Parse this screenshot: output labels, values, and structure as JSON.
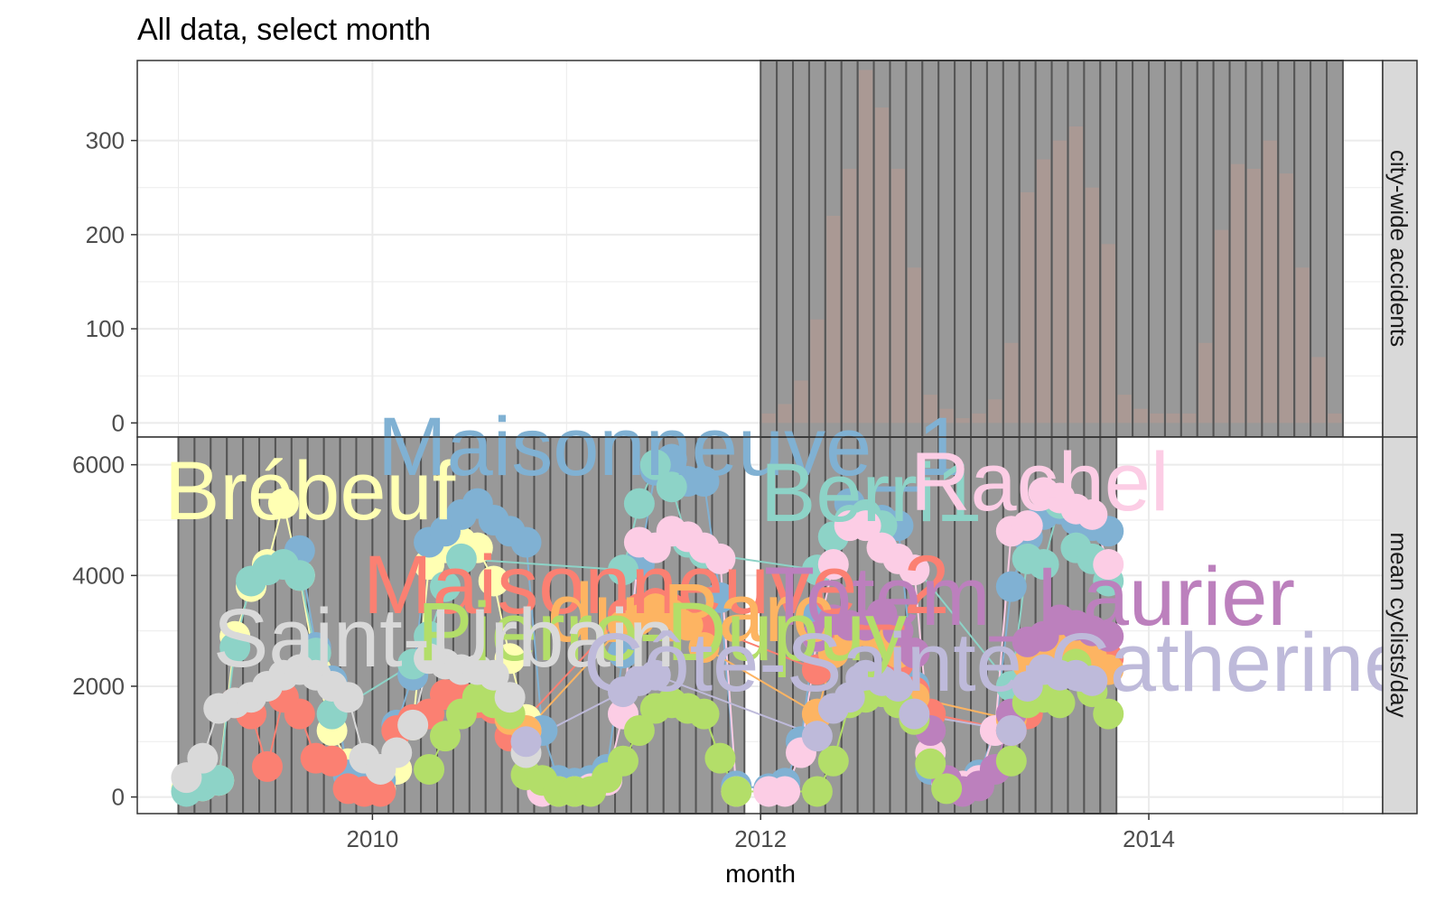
{
  "title": "All data, select month",
  "xlabel": "month",
  "colors": {
    "grid": "#ebebeb",
    "panel_border": "#333333",
    "strip_bg": "#d9d9d9",
    "select_rect": "#999999",
    "select_stroke": "#555555",
    "bar": "#b49a92"
  },
  "chart_data": [
    {
      "type": "bar",
      "panel": "city-wide accidents",
      "x_axis": {
        "type": "date",
        "range": [
          "2008-10-15",
          "2015-03-15"
        ],
        "ticks": [
          "2010",
          "2012",
          "2014"
        ]
      },
      "y_axis": {
        "range": [
          -15,
          385
        ],
        "ticks": [
          0,
          100,
          200,
          300
        ]
      },
      "grid": true,
      "months": [
        "2012-01",
        "2012-02",
        "2012-03",
        "2012-04",
        "2012-05",
        "2012-06",
        "2012-07",
        "2012-08",
        "2012-09",
        "2012-10",
        "2012-11",
        "2012-12",
        "2013-01",
        "2013-02",
        "2013-03",
        "2013-04",
        "2013-05",
        "2013-06",
        "2013-07",
        "2013-08",
        "2013-09",
        "2013-10",
        "2013-11",
        "2013-12",
        "2014-01",
        "2014-02",
        "2014-03",
        "2014-04",
        "2014-05",
        "2014-06",
        "2014-07",
        "2014-08",
        "2014-09",
        "2014-10",
        "2014-11",
        "2014-12"
      ],
      "values": [
        10,
        20,
        45,
        110,
        220,
        270,
        375,
        335,
        270,
        165,
        30,
        15,
        5,
        10,
        25,
        85,
        245,
        280,
        300,
        315,
        250,
        190,
        30,
        15,
        10,
        10,
        10,
        85,
        205,
        275,
        270,
        300,
        265,
        165,
        70,
        10
      ]
    },
    {
      "type": "line",
      "panel": "mean cyclists/day",
      "x_axis": {
        "type": "date",
        "range": [
          "2008-10-15",
          "2015-03-15"
        ],
        "ticks": [
          "2010",
          "2012",
          "2014"
        ]
      },
      "y_axis": {
        "range": [
          -300,
          6500
        ],
        "ticks": [
          0,
          2000,
          4000,
          6000
        ]
      },
      "grid": true,
      "labels": [
        {
          "text": "Brébeuf",
          "color": "#ffffb3"
        },
        {
          "text": "Maisonneuve_1",
          "color": "#80b1d3"
        },
        {
          "text": "Berri1",
          "color": "#8dd3c7"
        },
        {
          "text": "Rachel",
          "color": "#fccde5"
        },
        {
          "text": "Maisonneuve_2",
          "color": "#fb8072"
        },
        {
          "text": "du Parc",
          "color": "#fdb462"
        },
        {
          "text": "Totem_Laurier",
          "color": "#bc80bd"
        },
        {
          "text": "Pierre-Dupuy",
          "color": "#b3de69"
        },
        {
          "text": "Saint-Urbain",
          "color": "#d9d9d9"
        },
        {
          "text": "Côte-Sainte-Catherine",
          "color": "#bebada"
        }
      ],
      "series": [
        {
          "name": "Brébeuf",
          "color": "#ffffb3",
          "x": [
            "2009-01",
            "2009-02",
            "2009-03",
            "2009-04",
            "2009-05",
            "2009-06",
            "2009-07",
            "2009-08",
            "2009-09",
            "2009-10",
            "2009-11",
            "2009-12",
            "2010-01",
            "2010-02",
            "2010-03",
            "2010-04",
            "2010-05",
            "2010-06",
            "2010-07",
            "2010-08",
            "2010-09",
            "2010-10"
          ],
          "values": [
            150,
            200,
            300,
            2900,
            3800,
            4200,
            5300,
            4000,
            2300,
            1200,
            600,
            200,
            150,
            500,
            1300,
            4200,
            4500,
            4600,
            4500,
            3900,
            2500,
            1400
          ]
        },
        {
          "name": "Maisonneuve_1",
          "color": "#80b1d3",
          "x": [
            "2009-08",
            "2009-09",
            "2009-10",
            "2009-11",
            "2009-12",
            "2010-01",
            "2010-02",
            "2010-03",
            "2010-04",
            "2010-05",
            "2010-06",
            "2010-07",
            "2010-08",
            "2010-09",
            "2010-10",
            "2010-11",
            "2010-12",
            "2011-01",
            "2011-02",
            "2011-03",
            "2011-04",
            "2011-05",
            "2011-06",
            "2011-07",
            "2011-08",
            "2011-09",
            "2011-10",
            "2011-11",
            "2012-01",
            "2012-02",
            "2012-03",
            "2012-04",
            "2012-05",
            "2012-06",
            "2012-07",
            "2012-08",
            "2012-09",
            "2012-10",
            "2012-11",
            "2012-12",
            "2013-01",
            "2013-02",
            "2013-03",
            "2013-04",
            "2013-05",
            "2013-06",
            "2013-07",
            "2013-08",
            "2013-09",
            "2013-10"
          ],
          "values": [
            4450,
            2700,
            2100,
            400,
            200,
            300,
            1300,
            2200,
            4600,
            4800,
            5100,
            5300,
            5000,
            4800,
            4600,
            1200,
            300,
            250,
            300,
            500,
            2600,
            4200,
            5900,
            6100,
            5700,
            5700,
            3600,
            200,
            150,
            250,
            1000,
            3300,
            4700,
            5300,
            5100,
            5000,
            4900,
            2000,
            500,
            200,
            200,
            400,
            1200,
            3800,
            4700,
            5100,
            5200,
            5000,
            4900,
            4800
          ]
        },
        {
          "name": "Berri1",
          "color": "#8dd3c7",
          "x": [
            "2009-01",
            "2009-02",
            "2009-03",
            "2009-04",
            "2009-05",
            "2009-06",
            "2009-07",
            "2009-08",
            "2009-09",
            "2009-10",
            "2010-03",
            "2010-04",
            "2010-05",
            "2010-06",
            "2011-04",
            "2011-05",
            "2011-06",
            "2011-07",
            "2011-08",
            "2011-09",
            "2012-04",
            "2012-05",
            "2012-06",
            "2012-07",
            "2012-08",
            "2013-04",
            "2013-05",
            "2013-06",
            "2013-07",
            "2013-08",
            "2013-09",
            "2013-10"
          ],
          "values": [
            100,
            200,
            300,
            2700,
            3900,
            4100,
            4200,
            4000,
            2600,
            1500,
            2400,
            2900,
            3800,
            4300,
            4100,
            5300,
            6000,
            5600,
            4600,
            4400,
            4100,
            4700,
            5000,
            5100,
            4900,
            2000,
            4300,
            4200,
            5300,
            4500,
            4300,
            3900
          ]
        },
        {
          "name": "Rachel",
          "color": "#fccde5",
          "x": [
            "2010-09",
            "2010-10",
            "2010-11",
            "2010-12",
            "2011-01",
            "2011-02",
            "2011-03",
            "2011-04",
            "2011-05",
            "2011-06",
            "2011-07",
            "2011-08",
            "2011-09",
            "2011-10",
            "2011-11",
            "2012-01",
            "2012-02",
            "2012-03",
            "2012-04",
            "2012-05",
            "2012-06",
            "2012-07",
            "2012-08",
            "2012-09",
            "2012-10",
            "2012-11",
            "2012-12",
            "2013-01",
            "2013-02",
            "2013-03",
            "2013-04",
            "2013-05",
            "2013-06",
            "2013-07",
            "2013-08",
            "2013-09",
            "2013-10"
          ],
          "values": [
            1500,
            1200,
            100,
            100,
            100,
            150,
            300,
            1500,
            4600,
            4500,
            4800,
            4700,
            4500,
            4300,
            100,
            100,
            100,
            800,
            2900,
            4200,
            4900,
            4900,
            4500,
            4300,
            4100,
            800,
            250,
            200,
            300,
            1200,
            4800,
            4900,
            5500,
            5400,
            5200,
            5100,
            4200
          ]
        },
        {
          "name": "Maisonneuve_2",
          "color": "#fb8072",
          "x": [
            "2009-04",
            "2009-05",
            "2009-06",
            "2009-07",
            "2009-08",
            "2009-09",
            "2009-10",
            "2009-11",
            "2009-12",
            "2010-01",
            "2010-02",
            "2010-03",
            "2010-04",
            "2010-05",
            "2010-06",
            "2010-07",
            "2010-08",
            "2010-09",
            "2011-04",
            "2011-05",
            "2011-06",
            "2011-07",
            "2011-08",
            "2011-09",
            "2012-04",
            "2012-05",
            "2012-06",
            "2012-07",
            "2012-08",
            "2012-09",
            "2012-10",
            "2012-11",
            "2013-04",
            "2013-05",
            "2013-06",
            "2013-07",
            "2013-08",
            "2013-09",
            "2013-10"
          ],
          "values": [
            1700,
            1500,
            550,
            1800,
            1500,
            700,
            650,
            150,
            100,
            100,
            1200,
            1400,
            1500,
            1850,
            1800,
            1700,
            1600,
            1100,
            3300,
            3400,
            3500,
            3400,
            3200,
            3100,
            2300,
            2800,
            2900,
            3000,
            2800,
            2400,
            1900,
            1500,
            1200,
            1500,
            2100,
            2700,
            2700,
            2600,
            2500
          ]
        },
        {
          "name": "du Parc",
          "color": "#fdb462",
          "x": [
            "2010-09",
            "2010-10",
            "2011-04",
            "2011-05",
            "2011-06",
            "2011-07",
            "2011-08",
            "2011-09",
            "2012-04",
            "2012-05",
            "2012-06",
            "2012-07",
            "2012-08",
            "2012-09",
            "2012-10",
            "2013-04",
            "2013-05",
            "2013-06",
            "2013-07",
            "2013-08",
            "2013-09",
            "2013-10"
          ],
          "values": [
            1400,
            1200,
            3100,
            3200,
            3400,
            3300,
            3100,
            2700,
            1500,
            2600,
            2900,
            3000,
            2800,
            2600,
            1800,
            1400,
            2400,
            2600,
            2800,
            2700,
            2500,
            2300
          ]
        },
        {
          "name": "Totem_Laurier",
          "color": "#bc80bd",
          "x": [
            "2012-04",
            "2012-05",
            "2012-06",
            "2012-07",
            "2012-08",
            "2012-09",
            "2012-10",
            "2012-11",
            "2012-12",
            "2013-01",
            "2013-02",
            "2013-03",
            "2013-04",
            "2013-05",
            "2013-06",
            "2013-07",
            "2013-08",
            "2013-09",
            "2013-10"
          ],
          "values": [
            2900,
            3200,
            3100,
            3100,
            3300,
            3000,
            2600,
            1200,
            300,
            100,
            200,
            500,
            1500,
            2800,
            2900,
            3200,
            3100,
            3000,
            2900
          ]
        },
        {
          "name": "Pierre-Dupuy",
          "color": "#b3de69",
          "x": [
            "2010-04",
            "2010-05",
            "2010-06",
            "2010-07",
            "2010-08",
            "2010-09",
            "2010-10",
            "2010-11",
            "2010-12",
            "2011-01",
            "2011-02",
            "2011-03",
            "2011-04",
            "2011-05",
            "2011-06",
            "2011-07",
            "2011-08",
            "2011-09",
            "2011-10",
            "2011-11",
            "2012-04",
            "2012-05",
            "2012-06",
            "2012-07",
            "2012-08",
            "2012-09",
            "2012-10",
            "2012-11",
            "2012-12",
            "2013-04",
            "2013-05",
            "2013-06",
            "2013-07",
            "2013-08",
            "2013-09",
            "2013-10"
          ],
          "values": [
            500,
            1100,
            1500,
            1800,
            1700,
            1500,
            400,
            300,
            100,
            100,
            100,
            350,
            650,
            1200,
            1600,
            1700,
            1600,
            1500,
            700,
            100,
            100,
            650,
            1700,
            1800,
            1900,
            1700,
            1400,
            600,
            150,
            650,
            1700,
            1800,
            1700,
            2400,
            1900,
            1500
          ]
        },
        {
          "name": "Saint-Urbain",
          "color": "#d9d9d9",
          "x": [
            "2009-01",
            "2009-02",
            "2009-03",
            "2009-04",
            "2009-05",
            "2009-06",
            "2009-07",
            "2009-08",
            "2009-09",
            "2009-10",
            "2009-11",
            "2009-12",
            "2010-01",
            "2010-02",
            "2010-03",
            "2010-04",
            "2010-05",
            "2010-06",
            "2010-07",
            "2010-08",
            "2010-09",
            "2010-10"
          ],
          "values": [
            350,
            700,
            1600,
            1700,
            1800,
            2000,
            2200,
            2300,
            2200,
            2000,
            1800,
            700,
            500,
            800,
            1300,
            2500,
            2400,
            2300,
            2300,
            2200,
            1800,
            800
          ]
        },
        {
          "name": "Côte-Sainte-Catherine",
          "color": "#bebada",
          "x": [
            "2010-10",
            "2011-04",
            "2011-05",
            "2011-06",
            "2012-04",
            "2012-05",
            "2012-06",
            "2012-07",
            "2012-08",
            "2012-09",
            "2012-10",
            "2013-04",
            "2013-05",
            "2013-06",
            "2013-07",
            "2013-08",
            "2013-09"
          ],
          "values": [
            1000,
            1900,
            2100,
            2200,
            1100,
            1600,
            1800,
            2200,
            2100,
            2000,
            1500,
            1200,
            2000,
            2300,
            2200,
            2200,
            2100
          ]
        }
      ],
      "selected_month_ranges": [
        [
          "2009-01",
          "2011-11"
        ],
        [
          "2012-01",
          "2012-12"
        ],
        [
          "2013-01",
          "2013-10"
        ]
      ]
    }
  ],
  "panels": {
    "top_strip": "city-wide accidents",
    "bottom_strip": "mean cyclists/day"
  },
  "selected_month_ranges_top": [
    [
      "2012-01",
      "2014-12"
    ]
  ]
}
